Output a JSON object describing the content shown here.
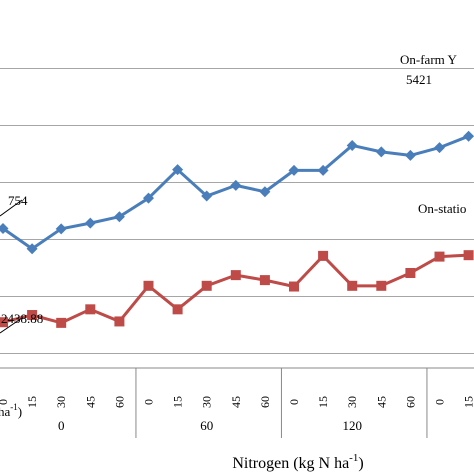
{
  "chart_data": {
    "type": "line",
    "xlabel": "Nitrogen (kg N ha",
    "xlabel_sup": "-1",
    "xlabel_suffix": ")",
    "ylabel_fragment": "ha",
    "ylabel_fragment_sup": "-1",
    "ylabel_fragment_suffix": ")",
    "ylim": [
      1600,
      6400
    ],
    "gridlines": [
      2000,
      2800,
      3600,
      4400,
      5200,
      6000
    ],
    "categories": [
      "0",
      "15",
      "30",
      "45",
      "60",
      "0",
      "15",
      "30",
      "45",
      "60",
      "0",
      "15",
      "30",
      "45",
      "60",
      "0",
      "15"
    ],
    "groups": [
      {
        "label": "0",
        "count": 5
      },
      {
        "label": "60",
        "count": 5
      },
      {
        "label": "120",
        "count": 5
      },
      {
        "label": "",
        "count": 2
      }
    ],
    "series": [
      {
        "name": "On-farm Y",
        "color": "#4a7ebb",
        "marker": "diamond",
        "values": [
          3754,
          3470,
          3750,
          3830,
          3920,
          4180,
          4580,
          4210,
          4360,
          4270,
          4570,
          4570,
          4920,
          4830,
          4780,
          4890,
          5050
        ]
      },
      {
        "name": "On-statio",
        "color": "#be4b48",
        "marker": "square",
        "values": [
          2438.88,
          2540,
          2430,
          2620,
          2450,
          2950,
          2620,
          2950,
          3100,
          3030,
          2940,
          3370,
          2950,
          2950,
          3130,
          3360,
          3380
        ]
      }
    ],
    "annotations": [
      {
        "text": "On-farm Y",
        "series": 0
      },
      {
        "text": "5421",
        "series": 0
      },
      {
        "text": "On-statio",
        "series": 1
      },
      {
        "text": "754",
        "series": 0
      },
      {
        "text": "2438.88",
        "series": 1
      }
    ]
  }
}
